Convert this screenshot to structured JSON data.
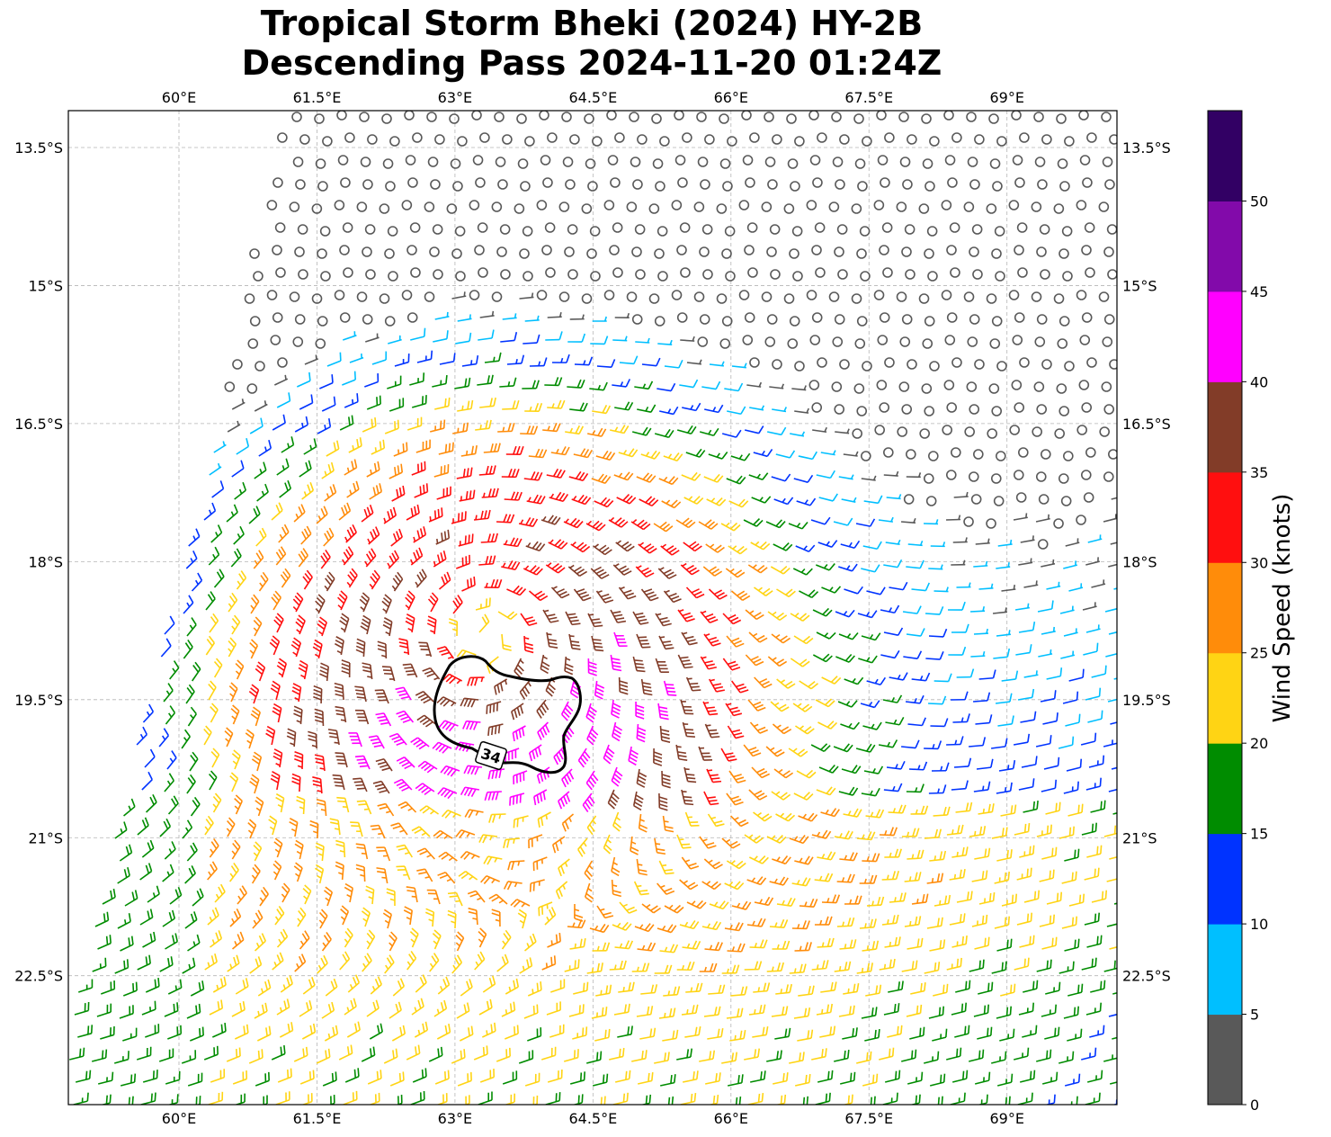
{
  "title_line1": "Tropical Storm Bheki (2024) HY-2B",
  "title_line2": "Descending Pass 2024-11-20 01:24Z",
  "lon_ticks": [
    "60°E",
    "61.5°E",
    "63°E",
    "64.5°E",
    "66°E",
    "67.5°E",
    "69°E"
  ],
  "lat_ticks": [
    "13.5°S",
    "15°S",
    "16.5°S",
    "18°S",
    "19.5°S",
    "21°S",
    "22.5°S"
  ],
  "map_extent": {
    "lon_min": 58.8,
    "lon_max": 70.2,
    "lat_min": -23.9,
    "lat_max": -13.1
  },
  "storm_center": {
    "lon": 63.3,
    "lat": -18.8
  },
  "contour_label": "34",
  "colorbar": {
    "label": "Wind Speed (knots)",
    "ticks": [
      "0",
      "5",
      "10",
      "15",
      "20",
      "25",
      "30",
      "35",
      "40",
      "45",
      "50"
    ],
    "bins": [
      {
        "from": 0,
        "to": 5,
        "color": "#595959"
      },
      {
        "from": 5,
        "to": 10,
        "color": "#00bfff"
      },
      {
        "from": 10,
        "to": 15,
        "color": "#0033ff"
      },
      {
        "from": 15,
        "to": 20,
        "color": "#008c00"
      },
      {
        "from": 20,
        "to": 25,
        "color": "#ffd414"
      },
      {
        "from": 25,
        "to": 30,
        "color": "#ff8c0a"
      },
      {
        "from": 30,
        "to": 35,
        "color": "#ff0f0f"
      },
      {
        "from": 35,
        "to": 40,
        "color": "#823c28"
      },
      {
        "from": 40,
        "to": 45,
        "color": "#ff00ff"
      },
      {
        "from": 45,
        "to": 50,
        "color": "#820aaa"
      },
      {
        "from": 50,
        "to": 55,
        "color": "#320064"
      }
    ]
  }
}
